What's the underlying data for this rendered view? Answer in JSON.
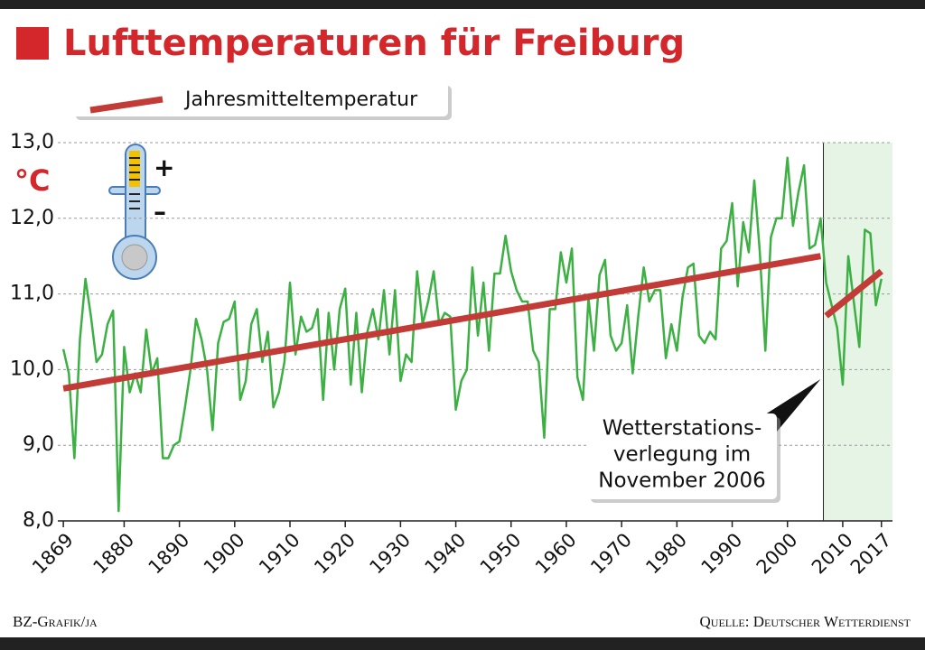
{
  "chart_data": {
    "type": "line",
    "title": "Lufttemperaturen für Freiburg",
    "y_unit": "°C",
    "thermometer_labels": [
      "+",
      "–"
    ],
    "source_left": "BZ-Grafik/ja",
    "source_right": "Quelle: Deutscher Wetterdienst",
    "annotation": {
      "lines": [
        "Wetterstations-",
        "verlegung im",
        "November 2006"
      ],
      "x": 2006
    },
    "highlight": [
      2006.5,
      2019
    ],
    "highlight_color": "#e6f4e6",
    "xlim": [
      1868,
      2019
    ],
    "ylim": [
      8,
      13
    ],
    "xticks": [
      1869,
      1880,
      1890,
      1900,
      1910,
      1920,
      1930,
      1940,
      1950,
      1960,
      1970,
      1980,
      1990,
      2000,
      2010,
      2017
    ],
    "yticks": [
      {
        "value": 8,
        "label": "8,0"
      },
      {
        "value": 9,
        "label": "9,0"
      },
      {
        "value": 10,
        "label": "10,0"
      },
      {
        "value": 11,
        "label": "11,0"
      },
      {
        "value": 12,
        "label": "12,0"
      },
      {
        "value": 13,
        "label": "13,0"
      }
    ],
    "grid": true,
    "series": [
      {
        "color": "#3cb043",
        "x": [
          1869,
          1870,
          1871,
          1872,
          1873,
          1874,
          1875,
          1876,
          1877,
          1878,
          1879,
          1880,
          1881,
          1882,
          1883,
          1884,
          1885,
          1886,
          1887,
          1888,
          1889,
          1890,
          1891,
          1892,
          1893,
          1894,
          1895,
          1896,
          1897,
          1898,
          1899,
          1900,
          1901,
          1902,
          1903,
          1904,
          1905,
          1906,
          1907,
          1908,
          1909,
          1910,
          1911,
          1912,
          1913,
          1914,
          1915,
          1916,
          1917,
          1918,
          1919,
          1920,
          1921,
          1922,
          1923,
          1924,
          1925,
          1926,
          1927,
          1928,
          1929,
          1930,
          1931,
          1932,
          1933,
          1934,
          1935,
          1936,
          1937,
          1938,
          1939,
          1940,
          1941,
          1942,
          1943,
          1944,
          1945,
          1946,
          1947,
          1948,
          1949,
          1950,
          1951,
          1952,
          1953,
          1954,
          1955,
          1956,
          1957,
          1958,
          1959,
          1960,
          1961,
          1962,
          1963,
          1964,
          1965,
          1966,
          1967,
          1968,
          1969,
          1970,
          1971,
          1972,
          1973,
          1974,
          1975,
          1976,
          1977,
          1978,
          1979,
          1980,
          1981,
          1982,
          1983,
          1984,
          1985,
          1986,
          1987,
          1988,
          1989,
          1990,
          1991,
          1992,
          1993,
          1994,
          1995,
          1996,
          1997,
          1998,
          1999,
          2000,
          2001,
          2002,
          2003,
          2004,
          2005,
          2006,
          2007,
          2008,
          2009,
          2010,
          2011,
          2012,
          2013,
          2014,
          2015,
          2016,
          2017
        ],
        "values": [
          10.27,
          9.95,
          8.83,
          10.4,
          11.2,
          10.7,
          10.1,
          10.2,
          10.6,
          10.78,
          8.13,
          10.3,
          9.7,
          9.95,
          9.7,
          10.53,
          9.95,
          10.15,
          8.83,
          8.83,
          9.0,
          9.05,
          9.5,
          10.0,
          10.67,
          10.4,
          10.0,
          9.2,
          10.35,
          10.63,
          10.67,
          10.9,
          9.6,
          9.85,
          10.6,
          10.8,
          10.1,
          10.5,
          9.5,
          9.7,
          10.1,
          11.15,
          10.2,
          10.7,
          10.5,
          10.55,
          10.8,
          9.6,
          10.75,
          10.0,
          10.8,
          11.07,
          9.8,
          10.75,
          9.7,
          10.5,
          10.8,
          10.4,
          11.05,
          10.2,
          11.05,
          9.85,
          10.2,
          10.1,
          11.3,
          10.6,
          10.9,
          11.3,
          10.6,
          10.75,
          10.7,
          9.47,
          9.85,
          10.0,
          11.35,
          10.45,
          11.15,
          10.25,
          11.27,
          11.27,
          11.77,
          11.3,
          11.05,
          10.9,
          10.9,
          10.25,
          10.1,
          9.1,
          10.8,
          10.8,
          11.55,
          11.15,
          11.6,
          9.9,
          9.6,
          10.95,
          10.25,
          11.25,
          11.45,
          10.45,
          10.25,
          10.35,
          10.85,
          9.95,
          10.7,
          11.35,
          10.9,
          11.05,
          11.05,
          10.15,
          10.6,
          10.25,
          10.95,
          11.35,
          11.4,
          10.45,
          10.35,
          10.5,
          10.4,
          11.6,
          11.7,
          12.2,
          11.1,
          11.95,
          11.55,
          12.5,
          11.55,
          10.25,
          11.75,
          12.0,
          12.0,
          12.8,
          11.9,
          12.35,
          12.7,
          11.6,
          11.65,
          12.0,
          11.15,
          10.85,
          10.55,
          9.8,
          11.5,
          10.9,
          10.3,
          11.85,
          11.8,
          10.85,
          11.2
        ]
      },
      {
        "name": "Jahresmitteltemperatur",
        "color": "#c23b36",
        "x": [
          1869,
          2006
        ],
        "values": [
          9.75,
          11.5
        ]
      },
      {
        "color": "#c23b36",
        "x": [
          2007,
          2017
        ],
        "values": [
          10.71,
          11.3
        ]
      }
    ]
  }
}
